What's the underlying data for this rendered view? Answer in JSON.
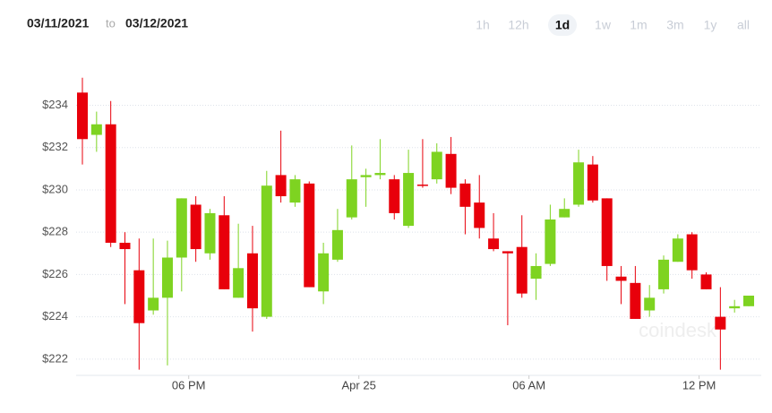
{
  "header": {
    "date_from": "03/11/2021",
    "date_sep": "to",
    "date_to": "03/12/2021",
    "ranges": [
      "1h",
      "12h",
      "1d",
      "1w",
      "1m",
      "3m",
      "1y",
      "all"
    ],
    "selected": "1d"
  },
  "watermark": "coindesk",
  "chart_data": {
    "type": "candlestick",
    "categories": [
      null,
      null,
      null,
      null,
      null,
      null,
      null,
      null,
      null,
      null,
      null,
      null,
      null,
      null,
      null,
      null,
      null,
      null,
      null,
      null,
      null,
      null,
      null,
      null,
      null,
      null,
      null,
      null,
      null,
      null,
      null,
      null,
      null,
      null,
      null,
      null,
      null,
      null,
      null,
      null,
      null,
      null,
      null,
      null,
      null,
      null,
      null,
      null
    ],
    "open": [
      234.6,
      232.6,
      233.1,
      227.5,
      226.2,
      224.3,
      224.9,
      226.8,
      229.3,
      227.0,
      228.8,
      224.9,
      227.0,
      224.0,
      230.7,
      229.4,
      230.3,
      225.2,
      226.7,
      228.7,
      230.6,
      230.7,
      230.5,
      228.3,
      230.25,
      230.5,
      231.7,
      230.3,
      229.4,
      227.7,
      227.1,
      227.3,
      225.8,
      226.5,
      228.7,
      229.3,
      231.2,
      229.6,
      225.9,
      225.6,
      224.3,
      225.3,
      226.6,
      227.9,
      226.0,
      224.0,
      224.4,
      224.5
    ],
    "high": [
      235.3,
      233.7,
      234.2,
      228.0,
      227.7,
      227.7,
      227.6,
      229.6,
      229.7,
      229.1,
      229.7,
      228.4,
      228.3,
      230.9,
      232.8,
      230.7,
      230.4,
      227.5,
      229.1,
      232.1,
      231.0,
      232.4,
      230.7,
      231.9,
      232.4,
      232.2,
      232.5,
      230.5,
      230.7,
      228.9,
      227.1,
      228.8,
      227.0,
      229.3,
      229.6,
      231.9,
      231.6,
      229.6,
      226.4,
      226.4,
      225.5,
      226.9,
      227.9,
      228.0,
      226.1,
      225.4,
      224.8,
      225.0
    ],
    "low": [
      231.2,
      231.8,
      227.3,
      224.6,
      221.5,
      224.1,
      221.7,
      225.2,
      226.6,
      226.7,
      225.3,
      224.9,
      223.3,
      223.9,
      229.4,
      229.2,
      225.4,
      224.6,
      226.6,
      228.6,
      229.2,
      230.5,
      228.6,
      228.2,
      230.1,
      230.3,
      229.8,
      227.9,
      227.7,
      227.1,
      223.6,
      224.9,
      224.8,
      226.4,
      228.7,
      229.2,
      229.4,
      225.7,
      224.6,
      223.9,
      224.0,
      225.1,
      226.6,
      225.8,
      225.3,
      221.5,
      224.2,
      224.5
    ],
    "close": [
      232.4,
      233.1,
      227.5,
      227.2,
      223.7,
      224.9,
      226.8,
      229.6,
      227.2,
      228.9,
      225.3,
      226.3,
      224.4,
      230.2,
      229.7,
      230.5,
      225.4,
      227.0,
      228.1,
      230.5,
      230.7,
      230.8,
      228.9,
      230.8,
      230.2,
      231.8,
      230.1,
      229.2,
      228.2,
      227.2,
      227.0,
      225.1,
      226.4,
      228.6,
      229.1,
      231.3,
      229.5,
      226.4,
      225.7,
      223.9,
      224.9,
      226.7,
      227.7,
      226.2,
      225.3,
      223.4,
      224.5,
      225.0
    ],
    "up_color": "#7ed321",
    "down_color": "#e8000b",
    "ylim": [
      221.4,
      235.8
    ],
    "yticks": [
      {
        "value": 222,
        "label": "$222"
      },
      {
        "value": 224,
        "label": "$224"
      },
      {
        "value": 226,
        "label": "$226"
      },
      {
        "value": 228,
        "label": "$228"
      },
      {
        "value": 230,
        "label": "$230"
      },
      {
        "value": 232,
        "label": "$232"
      },
      {
        "value": 234,
        "label": "$234"
      }
    ],
    "xticks": [
      {
        "value": 7.5,
        "label": "06 PM"
      },
      {
        "value": 19.5,
        "label": "Apr 25"
      },
      {
        "value": 31.5,
        "label": "06 AM"
      },
      {
        "value": 43.5,
        "label": "12 PM"
      }
    ],
    "grid": true
  }
}
